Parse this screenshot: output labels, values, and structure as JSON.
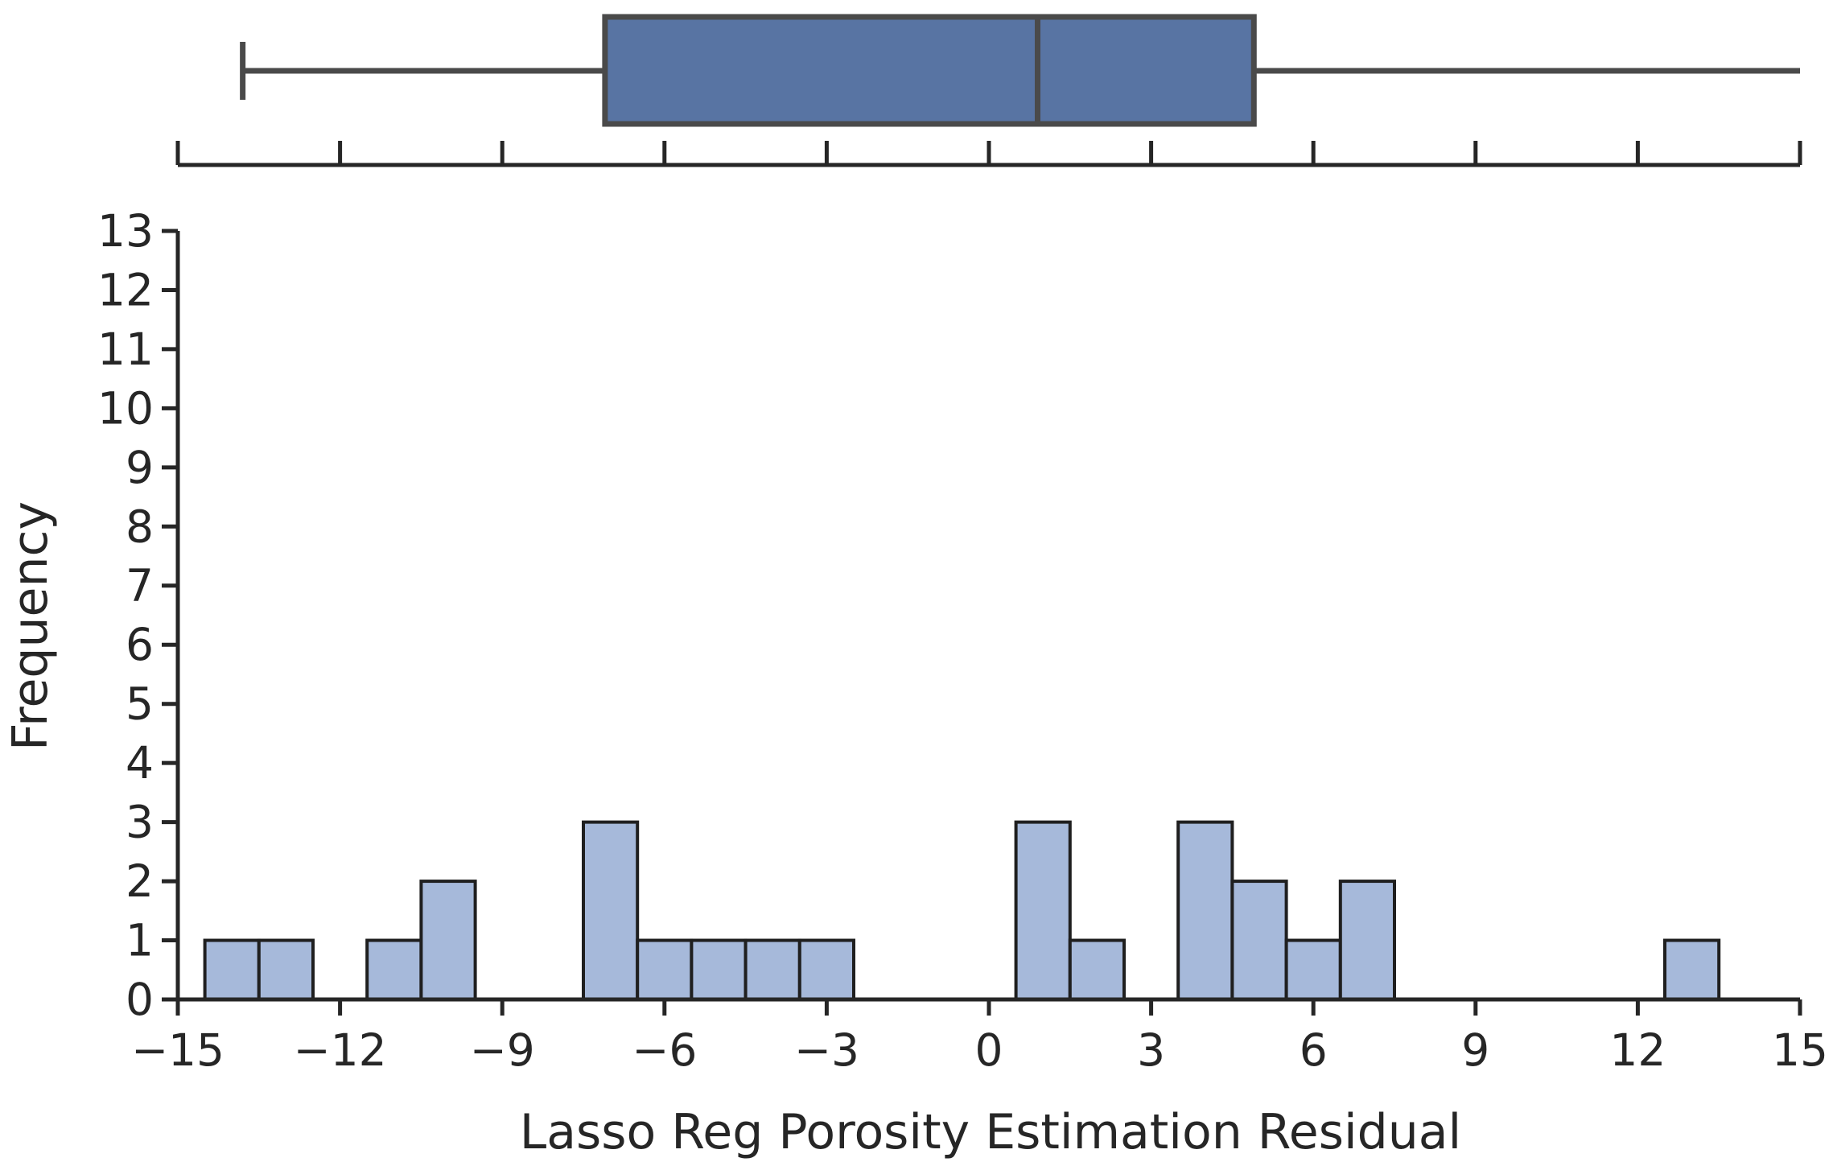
{
  "chart_data": {
    "type": "bar",
    "subtype": "histogram-with-boxplot",
    "xlabel": "Lasso Reg Porosity Estimation Residual",
    "ylabel": "Frequency",
    "xlim": [
      -15,
      15
    ],
    "ylim": [
      0,
      13
    ],
    "xticks": [
      -15,
      -12,
      -9,
      -6,
      -3,
      0,
      3,
      6,
      9,
      12,
      15
    ],
    "xtick_labels": [
      "−15",
      "−12",
      "−9",
      "−6",
      "−3",
      "0",
      "3",
      "6",
      "9",
      "12",
      "15"
    ],
    "yticks": [
      0,
      1,
      2,
      3,
      4,
      5,
      6,
      7,
      8,
      9,
      10,
      11,
      12,
      13
    ],
    "ytick_labels": [
      "0",
      "1",
      "2",
      "3",
      "4",
      "5",
      "6",
      "7",
      "8",
      "9",
      "10",
      "11",
      "12",
      "13"
    ],
    "bin_width": 1,
    "bins": [
      {
        "x0": -14.5,
        "x1": -13.5,
        "count": 1
      },
      {
        "x0": -13.5,
        "x1": -12.5,
        "count": 1
      },
      {
        "x0": -11.5,
        "x1": -10.5,
        "count": 1
      },
      {
        "x0": -10.5,
        "x1": -9.5,
        "count": 2
      },
      {
        "x0": -7.5,
        "x1": -6.5,
        "count": 3
      },
      {
        "x0": -6.5,
        "x1": -5.5,
        "count": 1
      },
      {
        "x0": -5.5,
        "x1": -4.5,
        "count": 1
      },
      {
        "x0": -4.5,
        "x1": -3.5,
        "count": 1
      },
      {
        "x0": -3.5,
        "x1": -2.5,
        "count": 1
      },
      {
        "x0": 0.5,
        "x1": 1.5,
        "count": 3
      },
      {
        "x0": 1.5,
        "x1": 2.5,
        "count": 1
      },
      {
        "x0": 3.5,
        "x1": 4.5,
        "count": 3
      },
      {
        "x0": 4.5,
        "x1": 5.5,
        "count": 2
      },
      {
        "x0": 5.5,
        "x1": 6.5,
        "count": 1
      },
      {
        "x0": 6.5,
        "x1": 7.5,
        "count": 2
      },
      {
        "x0": 12.5,
        "x1": 13.5,
        "count": 1
      }
    ],
    "boxplot": {
      "whisker_low": -13.8,
      "q1": -7.1,
      "median": 0.9,
      "q3": 4.9,
      "whisker_high": 15.0
    },
    "colors": {
      "bar_fill": "#a6b9da",
      "bar_edge": "#1f1f1f",
      "box_fill": "#5874a3",
      "box_edge": "#4a4a4a",
      "axis": "#262626"
    },
    "grid": false,
    "legend": "none"
  }
}
